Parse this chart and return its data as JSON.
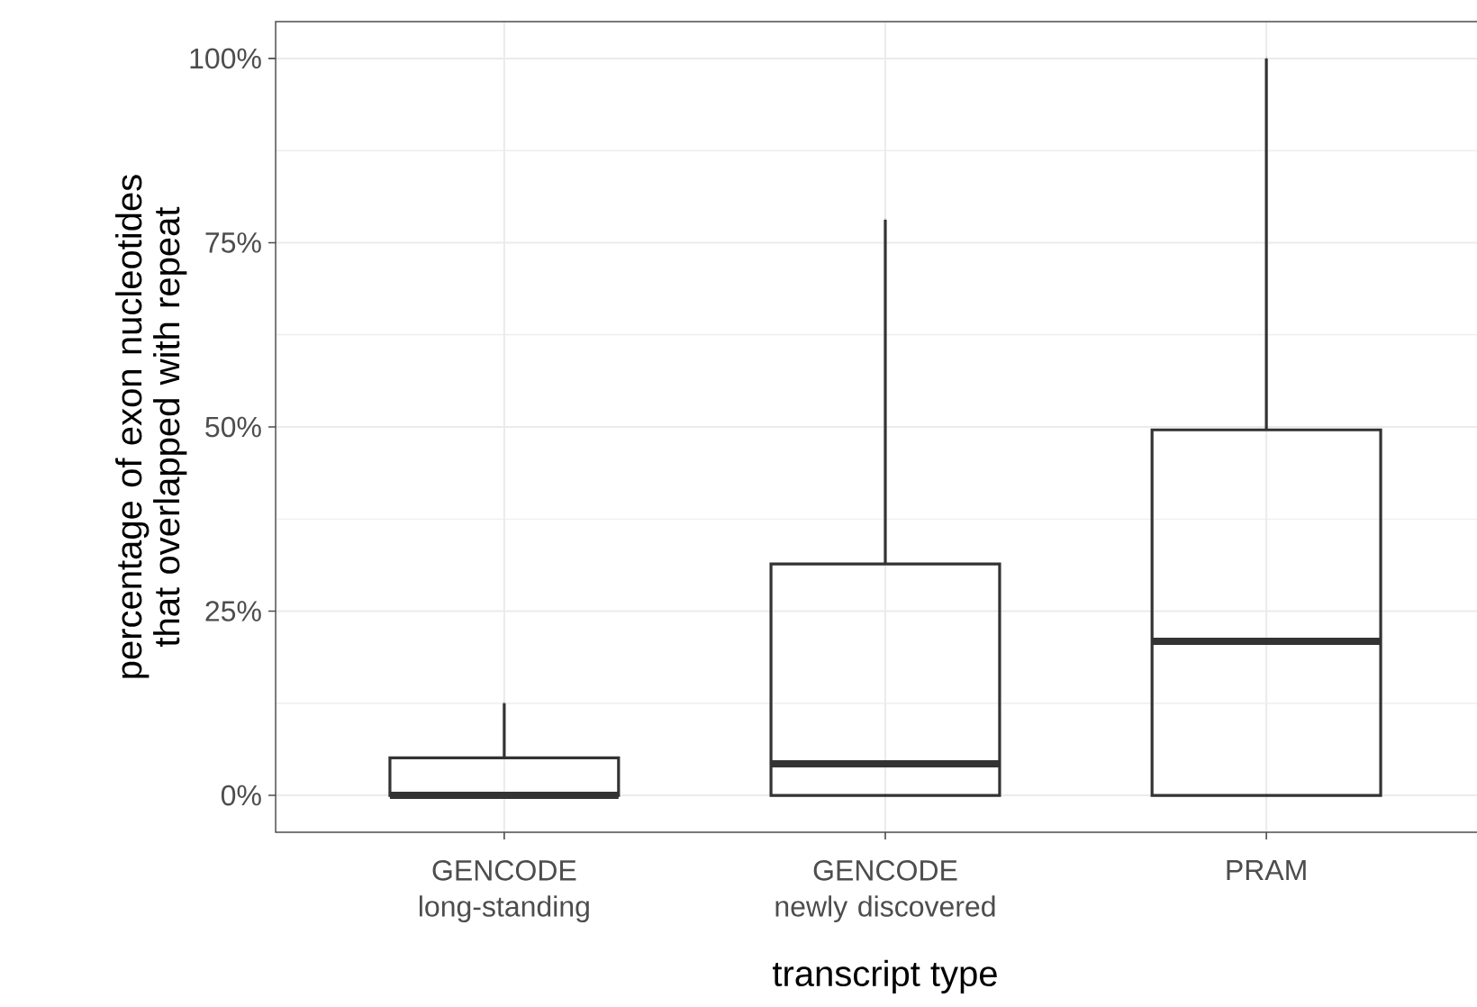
{
  "chart_data": {
    "type": "box",
    "xlabel": "transcript type",
    "ylabel": "percentage of exon nucleotides that overlapped with repeat",
    "categories": [
      "GENCODE long-standing",
      "GENCODE newly discovered",
      "PRAM"
    ],
    "boxes": [
      {
        "low": 0,
        "q1": 0,
        "median": 0,
        "q3": 5.1,
        "high": 12.5
      },
      {
        "low": 0,
        "q1": 0,
        "median": 4.3,
        "q3": 31.4,
        "high": 78.1
      },
      {
        "low": 0,
        "q1": 0,
        "median": 20.9,
        "q3": 49.6,
        "high": 100
      }
    ],
    "color": "#333333",
    "ylim": [
      -5,
      105
    ],
    "yticks": [
      {
        "value": 0,
        "label": "0%"
      },
      {
        "value": 25,
        "label": "25%"
      },
      {
        "value": 50,
        "label": "50%"
      },
      {
        "value": 75,
        "label": "75%"
      },
      {
        "value": 100,
        "label": "100%"
      }
    ],
    "grid": true
  }
}
